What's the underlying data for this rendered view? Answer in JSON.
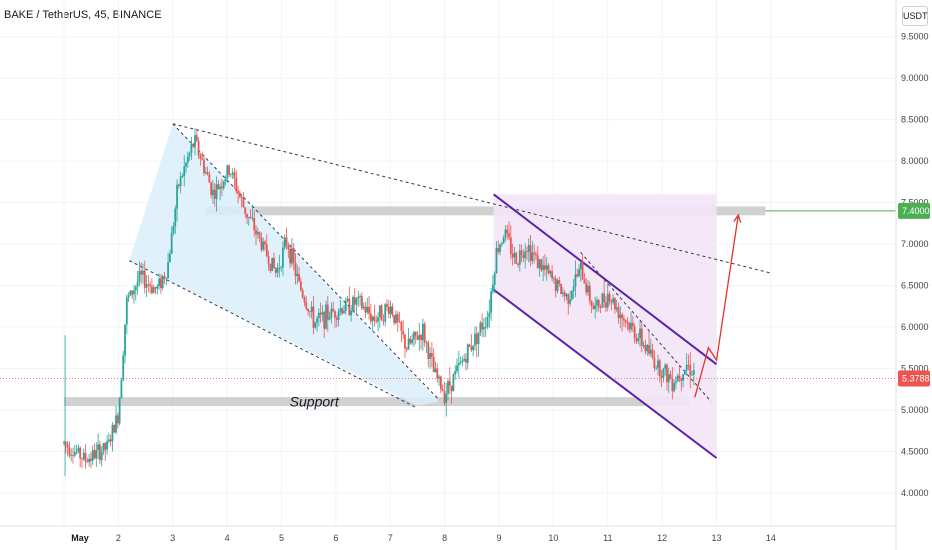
{
  "header": {
    "title": "BAKE / TetherUS, 45, BINANCE",
    "currency": "USDT"
  },
  "colors": {
    "up": "#26a69a",
    "down": "#ef5350",
    "wedge_fill": "#dbeefb",
    "channel_fill": "#f3e5f7",
    "channel_line": "#5b21a8",
    "zone": "#c9c9c9",
    "arrow": "#e5322d",
    "tag_green": "#4caf50",
    "tag_red": "#ef5350"
  },
  "chart_data": {
    "type": "candlestick",
    "x_ticks": [
      "May",
      "2",
      "3",
      "4",
      "5",
      "6",
      "7",
      "8",
      "9",
      "10",
      "11",
      "12",
      "13",
      "14"
    ],
    "y_ticks": [
      "4.0000",
      "4.5000",
      "5.0000",
      "5.5000",
      "6.0000",
      "6.5000",
      "7.0000",
      "7.5000",
      "8.0000",
      "8.5000",
      "9.0000",
      "9.5000"
    ],
    "ylim": [
      3.6,
      9.75
    ],
    "xlim": [
      0,
      15.3
    ],
    "key_points": [
      {
        "x": 0.0,
        "y": 4.6
      },
      {
        "x": 0.4,
        "y": 4.4
      },
      {
        "x": 0.8,
        "y": 4.55
      },
      {
        "x": 1.0,
        "y": 4.95
      },
      {
        "x": 1.15,
        "y": 6.3
      },
      {
        "x": 1.4,
        "y": 6.6
      },
      {
        "x": 1.7,
        "y": 6.45
      },
      {
        "x": 1.9,
        "y": 6.7
      },
      {
        "x": 2.1,
        "y": 7.7
      },
      {
        "x": 2.4,
        "y": 8.25
      },
      {
        "x": 2.75,
        "y": 7.6
      },
      {
        "x": 3.05,
        "y": 7.9
      },
      {
        "x": 3.3,
        "y": 7.45
      },
      {
        "x": 3.6,
        "y": 7.05
      },
      {
        "x": 3.9,
        "y": 6.65
      },
      {
        "x": 4.1,
        "y": 7.05
      },
      {
        "x": 4.3,
        "y": 6.55
      },
      {
        "x": 4.6,
        "y": 6.05
      },
      {
        "x": 5.0,
        "y": 6.2
      },
      {
        "x": 5.4,
        "y": 6.3
      },
      {
        "x": 5.7,
        "y": 6.1
      },
      {
        "x": 6.0,
        "y": 6.25
      },
      {
        "x": 6.3,
        "y": 5.75
      },
      {
        "x": 6.6,
        "y": 5.95
      },
      {
        "x": 6.8,
        "y": 5.45
      },
      {
        "x": 7.0,
        "y": 5.2
      },
      {
        "x": 7.3,
        "y": 5.55
      },
      {
        "x": 7.5,
        "y": 5.8
      },
      {
        "x": 7.8,
        "y": 6.15
      },
      {
        "x": 7.95,
        "y": 6.9
      },
      {
        "x": 8.1,
        "y": 7.15
      },
      {
        "x": 8.3,
        "y": 6.8
      },
      {
        "x": 8.5,
        "y": 7.0
      },
      {
        "x": 8.75,
        "y": 6.75
      },
      {
        "x": 9.0,
        "y": 6.55
      },
      {
        "x": 9.25,
        "y": 6.35
      },
      {
        "x": 9.5,
        "y": 6.7
      },
      {
        "x": 9.75,
        "y": 6.2
      },
      {
        "x": 10.0,
        "y": 6.4
      },
      {
        "x": 10.3,
        "y": 6.1
      },
      {
        "x": 10.6,
        "y": 5.85
      },
      {
        "x": 10.9,
        "y": 5.55
      },
      {
        "x": 11.2,
        "y": 5.35
      },
      {
        "x": 11.45,
        "y": 5.55
      },
      {
        "x": 11.6,
        "y": 5.45
      }
    ],
    "last_price": "5.3788",
    "target_price": "7.4000",
    "annotations": [
      {
        "type": "zone",
        "label": "Support",
        "y": 5.1
      },
      {
        "type": "zone",
        "label": "",
        "y": 7.4
      },
      {
        "type": "wedge",
        "x1": 2.0,
        "x2": 6.9
      },
      {
        "type": "descending_channel",
        "x1": 7.9,
        "x2": 12.0
      },
      {
        "type": "trendline",
        "from": {
          "x": 2.0,
          "y": 8.45
        },
        "to": {
          "x": 13.0,
          "y": 6.65
        }
      },
      {
        "type": "projection_arrow",
        "path": [
          {
            "x": 11.6,
            "y": 5.15
          },
          {
            "x": 11.85,
            "y": 5.75
          },
          {
            "x": 12.0,
            "y": 5.6
          },
          {
            "x": 12.4,
            "y": 7.35
          }
        ]
      }
    ]
  }
}
